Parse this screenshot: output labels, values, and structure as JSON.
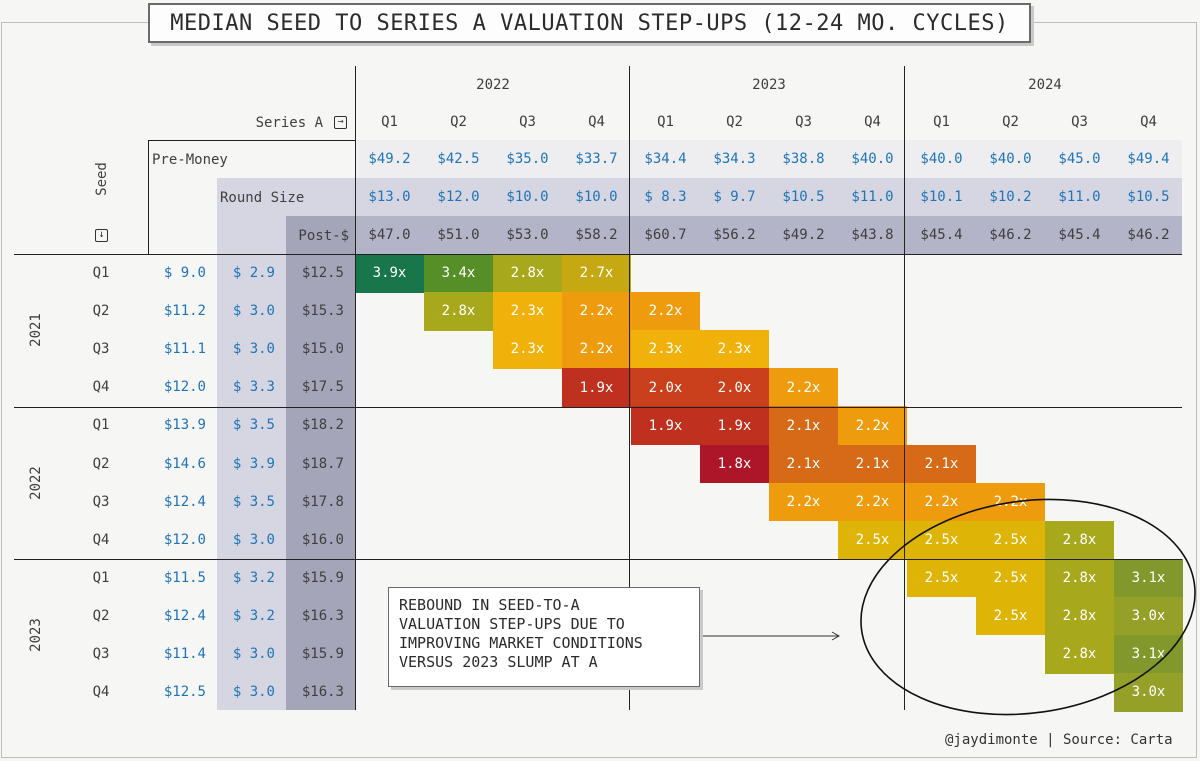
{
  "title": "MEDIAN SEED TO SERIES A VALUATION STEP-UPS (12-24 MO. CYCLES)",
  "source_text": "@jaydimonte | Source: Carta",
  "annotation_lines": [
    "REBOUND IN SEED-TO-A",
    "VALUATION STEP-UPS DUE TO",
    "IMPROVING MARKET CONDITIONS",
    "VERSUS 2023 SLUMP AT A"
  ],
  "colors": {
    "blue": "#1f74b8",
    "round_band": "#d6d6e2",
    "post_band": "#a5a5ba",
    "header_band": "#b4b4c8"
  },
  "chart_data": {
    "type": "heatmap",
    "title": "MEDIAN SEED TO SERIES A VALUATION STEP-UPS (12-24 MO. CYCLES)",
    "series_a_label": "Series A",
    "seed_label": "Seed",
    "series_a_years": [
      "2022",
      "2023",
      "2024"
    ],
    "series_a_quarters": [
      "Q1",
      "Q2",
      "Q3",
      "Q4",
      "Q1",
      "Q2",
      "Q3",
      "Q4",
      "Q1",
      "Q2",
      "Q3",
      "Q4"
    ],
    "row_labels": {
      "pre_money": "Pre-Money",
      "round_size": "Round Size",
      "post_money": "Post-$"
    },
    "series_a_pre_money": [
      "$49.2",
      "$42.5",
      "$35.0",
      "$33.7",
      "$34.4",
      "$34.3",
      "$38.8",
      "$40.0",
      "$40.0",
      "$40.0",
      "$45.0",
      "$49.4"
    ],
    "series_a_round_size": [
      "$13.0",
      "$12.0",
      "$10.0",
      "$10.0",
      "$ 8.3",
      "$ 9.7",
      "$10.5",
      "$11.0",
      "$10.1",
      "$10.2",
      "$11.0",
      "$10.5"
    ],
    "series_a_post_money": [
      "$47.0",
      "$51.0",
      "$53.0",
      "$58.2",
      "$60.7",
      "$56.2",
      "$49.2",
      "$43.8",
      "$45.4",
      "$46.2",
      "$45.4",
      "$46.2"
    ],
    "seed_years": [
      "2021",
      "2022",
      "2023"
    ],
    "seed_quarters": [
      "Q1",
      "Q2",
      "Q3",
      "Q4",
      "Q1",
      "Q2",
      "Q3",
      "Q4",
      "Q1",
      "Q2",
      "Q3",
      "Q4"
    ],
    "seed_pre_money": [
      "$ 9.0",
      "$11.2",
      "$11.1",
      "$12.0",
      "$13.9",
      "$14.6",
      "$12.4",
      "$12.0",
      "$11.5",
      "$12.4",
      "$11.4",
      "$12.5"
    ],
    "seed_round_size": [
      "$ 2.9",
      "$ 3.0",
      "$ 3.0",
      "$ 3.3",
      "$ 3.5",
      "$ 3.9",
      "$ 3.5",
      "$ 3.0",
      "$ 3.2",
      "$ 3.2",
      "$ 3.0",
      "$ 3.0"
    ],
    "seed_post_money": [
      "$12.5",
      "$15.3",
      "$15.0",
      "$17.5",
      "$18.2",
      "$18.7",
      "$17.8",
      "$16.0",
      "$15.9",
      "$16.3",
      "$15.9",
      "$16.3"
    ],
    "step_ups": [
      {
        "row": 0,
        "start": 0,
        "values": [
          3.9,
          3.4,
          2.8,
          2.7
        ]
      },
      {
        "row": 1,
        "start": 1,
        "values": [
          2.8,
          2.3,
          2.2,
          2.2
        ]
      },
      {
        "row": 2,
        "start": 2,
        "values": [
          2.3,
          2.2,
          2.3,
          2.3
        ]
      },
      {
        "row": 3,
        "start": 3,
        "values": [
          1.9,
          2.0,
          2.0,
          2.2
        ]
      },
      {
        "row": 4,
        "start": 4,
        "values": [
          1.9,
          1.9,
          2.1,
          2.2
        ]
      },
      {
        "row": 5,
        "start": 5,
        "values": [
          1.8,
          2.1,
          2.1,
          2.1
        ]
      },
      {
        "row": 6,
        "start": 6,
        "values": [
          2.2,
          2.2,
          2.2,
          2.2
        ]
      },
      {
        "row": 7,
        "start": 7,
        "values": [
          2.5,
          2.5,
          2.5,
          2.8
        ]
      },
      {
        "row": 8,
        "start": 8,
        "values": [
          2.5,
          2.5,
          2.8,
          3.1
        ]
      },
      {
        "row": 9,
        "start": 9,
        "values": [
          2.5,
          2.8,
          3.0
        ]
      },
      {
        "row": 10,
        "start": 10,
        "values": [
          2.8,
          3.1
        ]
      },
      {
        "row": 11,
        "start": 11,
        "values": [
          3.0
        ]
      }
    ],
    "value_suffix": "x"
  }
}
